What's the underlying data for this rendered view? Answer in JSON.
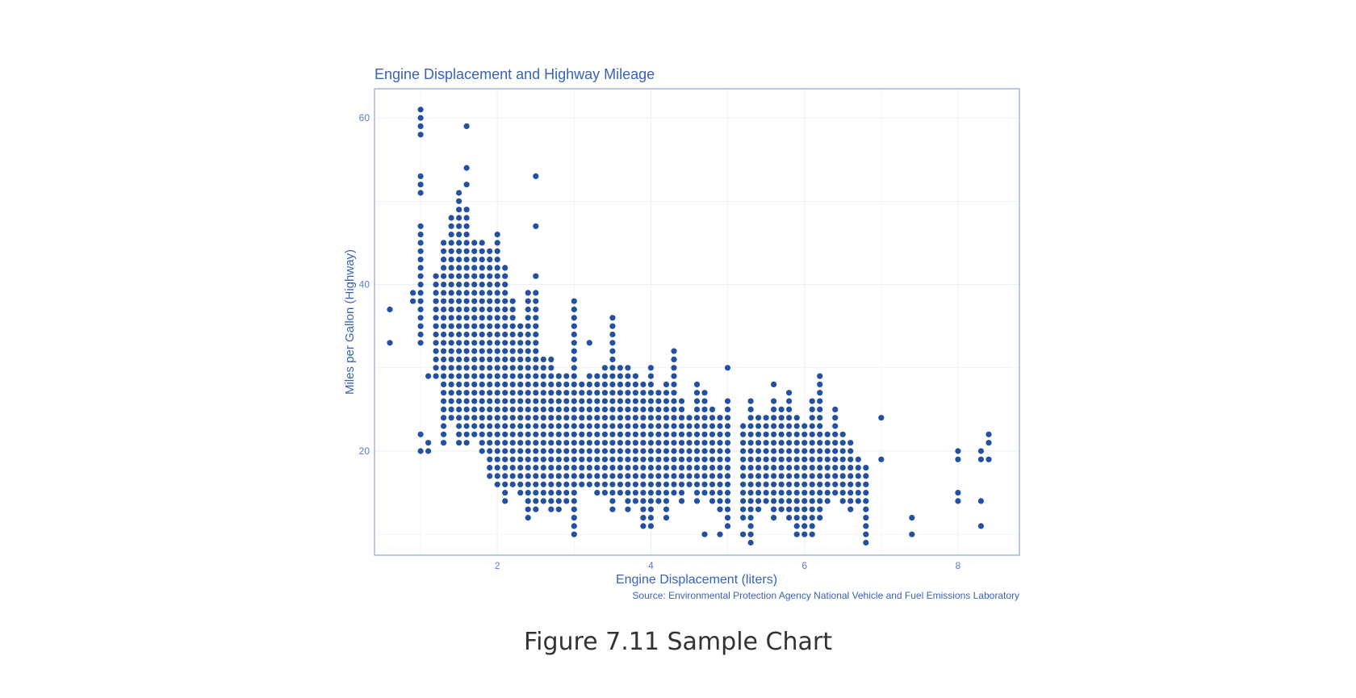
{
  "chart_data": {
    "type": "scatter",
    "title": "Engine Displacement and Highway Mileage",
    "xlabel": "Engine Displacement (liters)",
    "ylabel": "Miles per Gallon (Highway)",
    "source": "Source: Environmental Protection Agency National Vehicle and Fuel Emissions Laboratory",
    "xlim": [
      0.4,
      8.8
    ],
    "ylim": [
      7.5,
      63.5
    ],
    "x_ticks": [
      "2",
      "4",
      "6",
      "8"
    ],
    "y_ticks": [
      "20",
      "40",
      "60"
    ],
    "grid": true,
    "legend": "none",
    "columns": [
      {
        "x": 0.6,
        "ys": [
          33,
          37
        ]
      },
      {
        "x": 0.9,
        "ys": [
          38,
          39
        ]
      },
      {
        "x": 1.0,
        "range": [
          33,
          47
        ],
        "extra": [
          20,
          22,
          51,
          52,
          53,
          58,
          59,
          60,
          61
        ]
      },
      {
        "x": 1.1,
        "ys": [
          20,
          21,
          29
        ]
      },
      {
        "x": 1.2,
        "range": [
          29,
          41
        ]
      },
      {
        "x": 1.3,
        "range": [
          21,
          45
        ]
      },
      {
        "x": 1.4,
        "range": [
          24,
          48
        ]
      },
      {
        "x": 1.5,
        "range": [
          21,
          51
        ]
      },
      {
        "x": 1.6,
        "range": [
          21,
          49
        ],
        "extra": [
          52,
          54,
          59
        ]
      },
      {
        "x": 1.7,
        "range": [
          22,
          45
        ]
      },
      {
        "x": 1.8,
        "range": [
          20,
          45
        ]
      },
      {
        "x": 1.9,
        "range": [
          17,
          44
        ]
      },
      {
        "x": 2.0,
        "range": [
          16,
          46
        ]
      },
      {
        "x": 2.1,
        "range": [
          14,
          42
        ]
      },
      {
        "x": 2.2,
        "range": [
          16,
          38
        ]
      },
      {
        "x": 2.3,
        "range": [
          15,
          35
        ]
      },
      {
        "x": 2.4,
        "range": [
          12,
          39
        ]
      },
      {
        "x": 2.5,
        "range": [
          13,
          39
        ],
        "extra": [
          41,
          47,
          53
        ]
      },
      {
        "x": 2.6,
        "range": [
          14,
          31
        ]
      },
      {
        "x": 2.7,
        "range": [
          13,
          31
        ]
      },
      {
        "x": 2.8,
        "range": [
          13,
          29
        ]
      },
      {
        "x": 2.9,
        "range": [
          14,
          29
        ]
      },
      {
        "x": 3.0,
        "range": [
          10,
          38
        ]
      },
      {
        "x": 3.1,
        "range": [
          16,
          28
        ]
      },
      {
        "x": 3.2,
        "range": [
          16,
          29
        ],
        "extra": [
          33
        ]
      },
      {
        "x": 3.3,
        "range": [
          15,
          29
        ]
      },
      {
        "x": 3.4,
        "range": [
          15,
          30
        ]
      },
      {
        "x": 3.5,
        "range": [
          13,
          36
        ]
      },
      {
        "x": 3.6,
        "range": [
          15,
          30
        ]
      },
      {
        "x": 3.7,
        "range": [
          13,
          30
        ]
      },
      {
        "x": 3.8,
        "range": [
          14,
          29
        ]
      },
      {
        "x": 3.9,
        "range": [
          11,
          28
        ]
      },
      {
        "x": 4.0,
        "range": [
          11,
          30
        ]
      },
      {
        "x": 4.1,
        "range": [
          14,
          27
        ]
      },
      {
        "x": 4.2,
        "range": [
          12,
          28
        ]
      },
      {
        "x": 4.3,
        "range": [
          15,
          32
        ]
      },
      {
        "x": 4.4,
        "range": [
          14,
          26
        ]
      },
      {
        "x": 4.5,
        "range": [
          16,
          24
        ]
      },
      {
        "x": 4.6,
        "range": [
          14,
          28
        ]
      },
      {
        "x": 4.7,
        "range": [
          15,
          27
        ],
        "extra": [
          10
        ]
      },
      {
        "x": 4.8,
        "range": [
          14,
          25
        ]
      },
      {
        "x": 4.9,
        "range": [
          13,
          24
        ],
        "extra": [
          10
        ]
      },
      {
        "x": 5.0,
        "range": [
          11,
          26
        ],
        "extra": [
          30
        ]
      },
      {
        "x": 5.2,
        "range": [
          12,
          23
        ],
        "extra": [
          10
        ]
      },
      {
        "x": 5.3,
        "range": [
          10,
          26
        ],
        "extra": [
          9
        ]
      },
      {
        "x": 5.4,
        "range": [
          13,
          24
        ]
      },
      {
        "x": 5.5,
        "range": [
          14,
          24
        ]
      },
      {
        "x": 5.6,
        "range": [
          12,
          26
        ],
        "extra": [
          28
        ]
      },
      {
        "x": 5.7,
        "range": [
          13,
          25
        ]
      },
      {
        "x": 5.8,
        "range": [
          12,
          27
        ]
      },
      {
        "x": 5.9,
        "range": [
          10,
          24
        ]
      },
      {
        "x": 6.0,
        "range": [
          10,
          23
        ]
      },
      {
        "x": 6.1,
        "range": [
          10,
          26
        ]
      },
      {
        "x": 6.2,
        "range": [
          12,
          29
        ]
      },
      {
        "x": 6.3,
        "range": [
          14,
          22
        ]
      },
      {
        "x": 6.4,
        "range": [
          15,
          25
        ]
      },
      {
        "x": 6.5,
        "range": [
          14,
          22
        ]
      },
      {
        "x": 6.6,
        "range": [
          13,
          21
        ]
      },
      {
        "x": 6.7,
        "range": [
          14,
          19
        ]
      },
      {
        "x": 6.8,
        "range": [
          9,
          18
        ]
      },
      {
        "x": 7.0,
        "ys": [
          19,
          24
        ]
      },
      {
        "x": 7.4,
        "ys": [
          10,
          12
        ]
      },
      {
        "x": 8.0,
        "ys": [
          14,
          15,
          19,
          20
        ]
      },
      {
        "x": 8.3,
        "ys": [
          11,
          14,
          19,
          20
        ]
      },
      {
        "x": 8.4,
        "ys": [
          19,
          21,
          22
        ]
      }
    ]
  },
  "figure": {
    "caption": "Figure 7.11 Sample Chart"
  },
  "colors": {
    "point": "#23519f",
    "text": "#3a62b8",
    "tick_text": "#5b7cc9",
    "panel_border": "#8fa3d4",
    "grid": "#eceff4",
    "caption": "#333333"
  }
}
